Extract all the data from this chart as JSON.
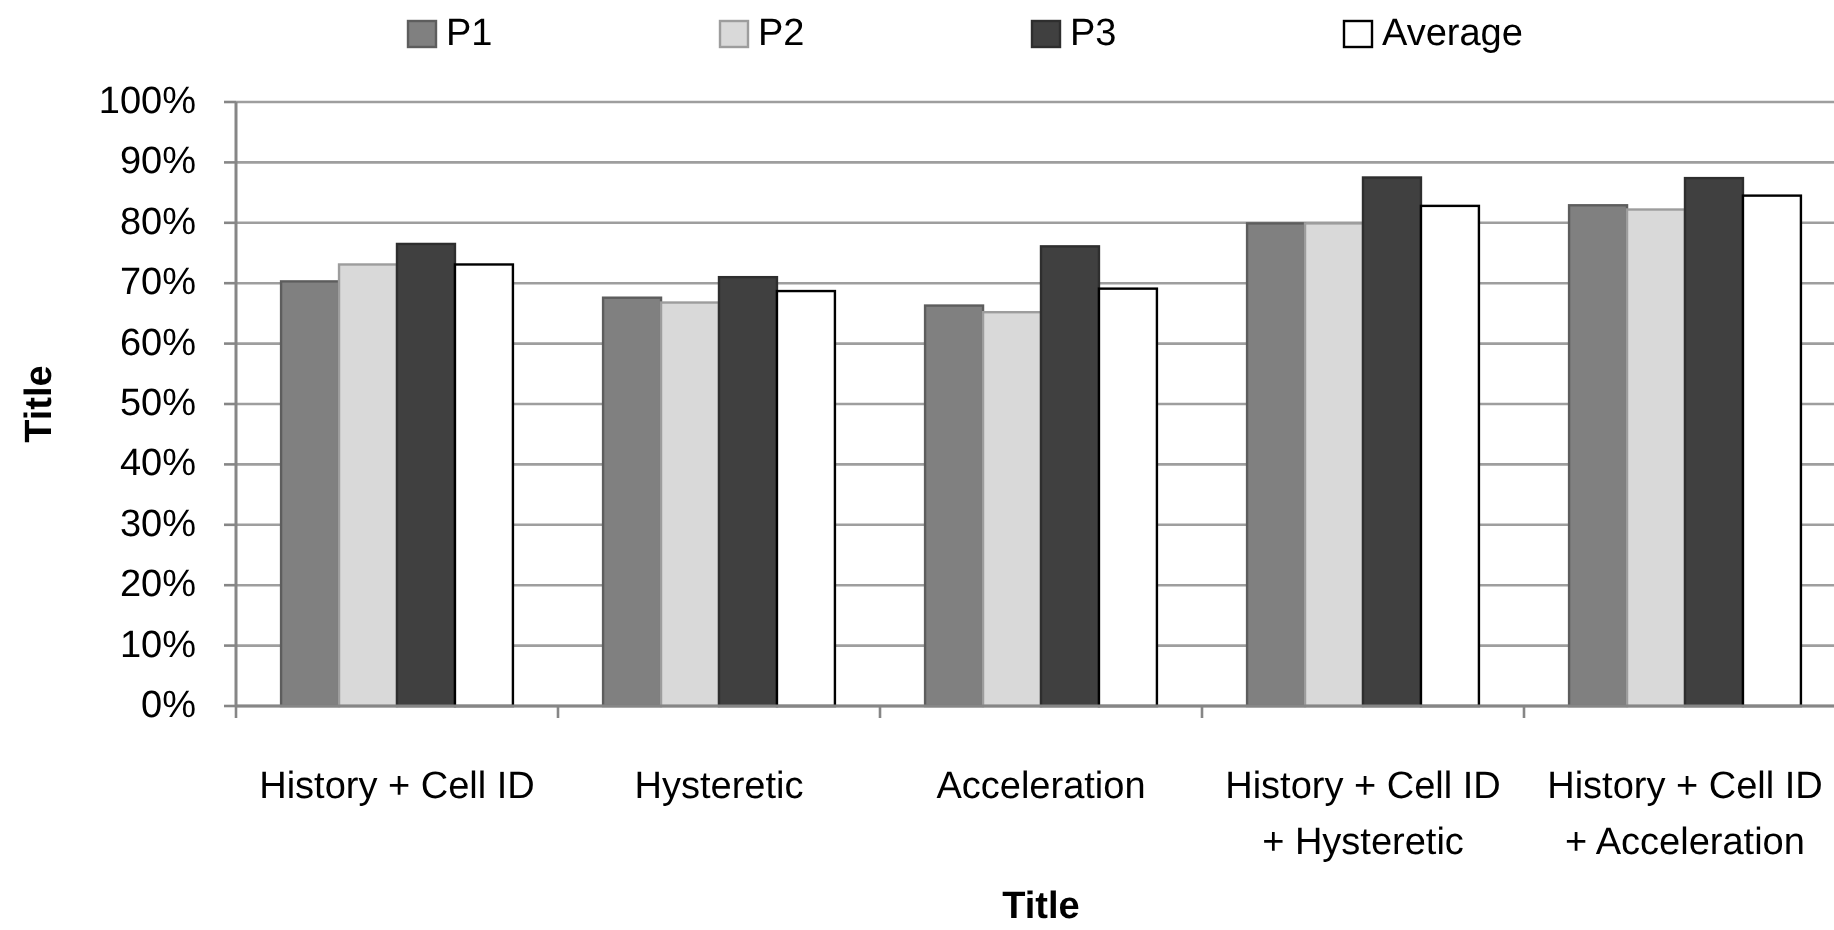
{
  "chart_data": {
    "type": "bar",
    "xlabel": "Title",
    "ylabel": "Title",
    "categories": [
      "History + Cell ID",
      "Hysteretic",
      "Acceleration",
      "History + Cell ID + Hysteretic",
      "History + Cell ID + Acceleration"
    ],
    "series": [
      {
        "name": "P1",
        "color": "#808080",
        "values": [
          70.3,
          67.6,
          66.3,
          79.9,
          82.9
        ]
      },
      {
        "name": "P2",
        "color": "#d9d9d9",
        "values": [
          73.1,
          66.8,
          65.2,
          79.9,
          82.2
        ]
      },
      {
        "name": "P3",
        "color": "#404040",
        "values": [
          76.5,
          71.0,
          76.1,
          87.5,
          87.4
        ]
      },
      {
        "name": "Average",
        "color": "#ffffff",
        "values": [
          73.1,
          68.7,
          69.1,
          82.8,
          84.5
        ]
      }
    ],
    "ylim": [
      0,
      100
    ],
    "yticks": [
      {
        "value": 0,
        "label": "0%"
      },
      {
        "value": 10,
        "label": "10%"
      },
      {
        "value": 20,
        "label": "20%"
      },
      {
        "value": 30,
        "label": "30%"
      },
      {
        "value": 40,
        "label": "40%"
      },
      {
        "value": 50,
        "label": "50%"
      },
      {
        "value": 60,
        "label": "60%"
      },
      {
        "value": 70,
        "label": "70%"
      },
      {
        "value": 80,
        "label": "80%"
      },
      {
        "value": 90,
        "label": "90%"
      },
      {
        "value": 100,
        "label": "100%"
      }
    ],
    "grid": "y",
    "legend": "top"
  }
}
